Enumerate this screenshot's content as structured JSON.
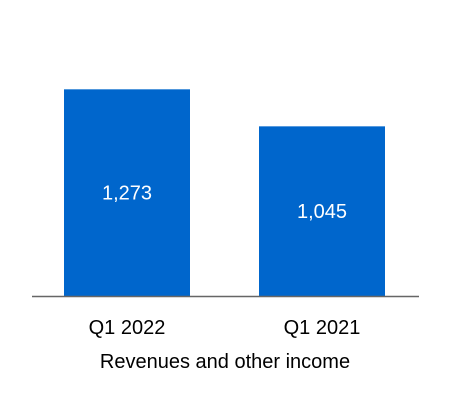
{
  "chart_data": {
    "type": "bar",
    "categories": [
      "Q1 2022",
      "Q1 2021"
    ],
    "values": [
      1273,
      1045
    ],
    "data_labels": [
      "1,273",
      "1,045"
    ],
    "title": "",
    "xlabel": "Revenues and other income",
    "ylabel": "",
    "ylim": [
      0,
      1700
    ],
    "grid": false,
    "legend": "none",
    "bar_color": "#0066CC",
    "axis_color": "#666666"
  }
}
